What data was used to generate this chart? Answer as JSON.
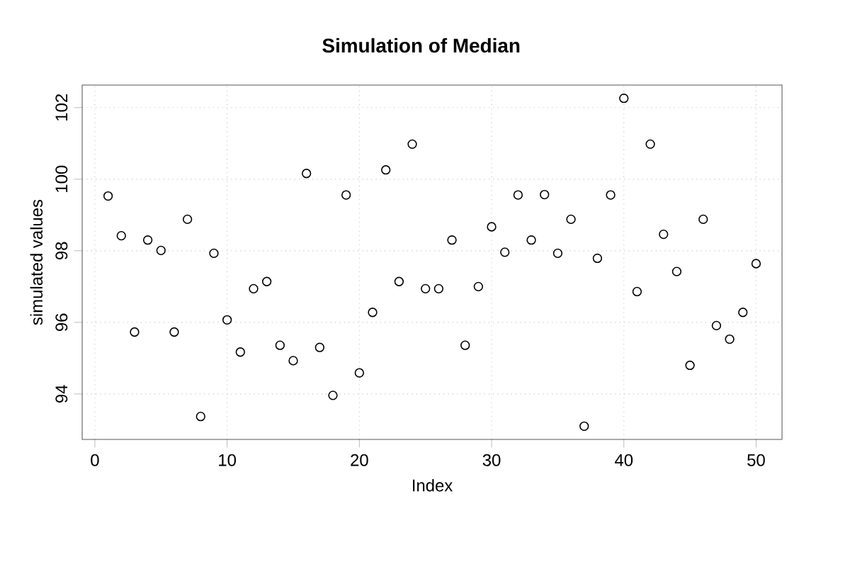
{
  "chart_data": {
    "type": "scatter",
    "title": "Simulation of Median",
    "xlabel": "Index",
    "ylabel": "simulated values",
    "x": [
      1,
      2,
      3,
      4,
      5,
      6,
      7,
      8,
      9,
      10,
      11,
      12,
      13,
      14,
      15,
      16,
      17,
      18,
      19,
      20,
      21,
      22,
      23,
      24,
      25,
      26,
      27,
      28,
      29,
      30,
      31,
      32,
      33,
      34,
      35,
      36,
      37,
      38,
      39,
      40,
      41,
      42,
      43,
      44,
      45,
      46,
      47,
      48,
      49,
      50
    ],
    "values": [
      99.53,
      98.42,
      95.73,
      98.3,
      98.01,
      95.73,
      98.88,
      93.37,
      97.93,
      96.07,
      95.17,
      96.94,
      97.14,
      95.36,
      94.93,
      100.16,
      95.3,
      93.96,
      99.56,
      94.59,
      96.28,
      100.26,
      97.14,
      100.98,
      96.94,
      96.94,
      98.3,
      95.36,
      97.0,
      98.67,
      97.96,
      99.56,
      98.3,
      99.57,
      97.93,
      98.88,
      93.1,
      97.79,
      99.56,
      102.26,
      96.86,
      100.98,
      98.46,
      97.42,
      94.8,
      98.88,
      95.91,
      95.53,
      96.28,
      97.64
    ],
    "color": "#000000",
    "marker": "circle",
    "grid": true,
    "xlim": [
      -0.96,
      51.96
    ],
    "ylim": [
      92.73,
      102.63
    ],
    "xticks": [
      0,
      10,
      20,
      30,
      40,
      50
    ],
    "yticks": [
      94,
      96,
      98,
      100,
      102
    ]
  }
}
